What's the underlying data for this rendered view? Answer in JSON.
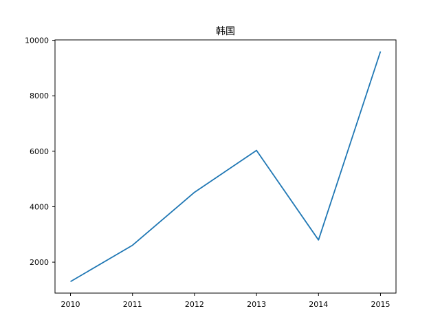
{
  "chart_data": {
    "type": "line",
    "title": "韩国",
    "xlabel": "",
    "ylabel": "",
    "x": [
      2010,
      2011,
      2012,
      2013,
      2014,
      2015
    ],
    "series": [
      {
        "values": [
          1300,
          2610,
          4520,
          6030,
          2800,
          9600
        ],
        "color": "#1f77b4"
      }
    ],
    "xlim": [
      2009.75,
      2015.25
    ],
    "ylim": [
      885,
      10015
    ],
    "x_ticks": [
      2010,
      2011,
      2012,
      2013,
      2014,
      2015
    ],
    "y_ticks": [
      2000,
      4000,
      6000,
      8000,
      10000
    ],
    "grid": false,
    "legend": "none"
  }
}
